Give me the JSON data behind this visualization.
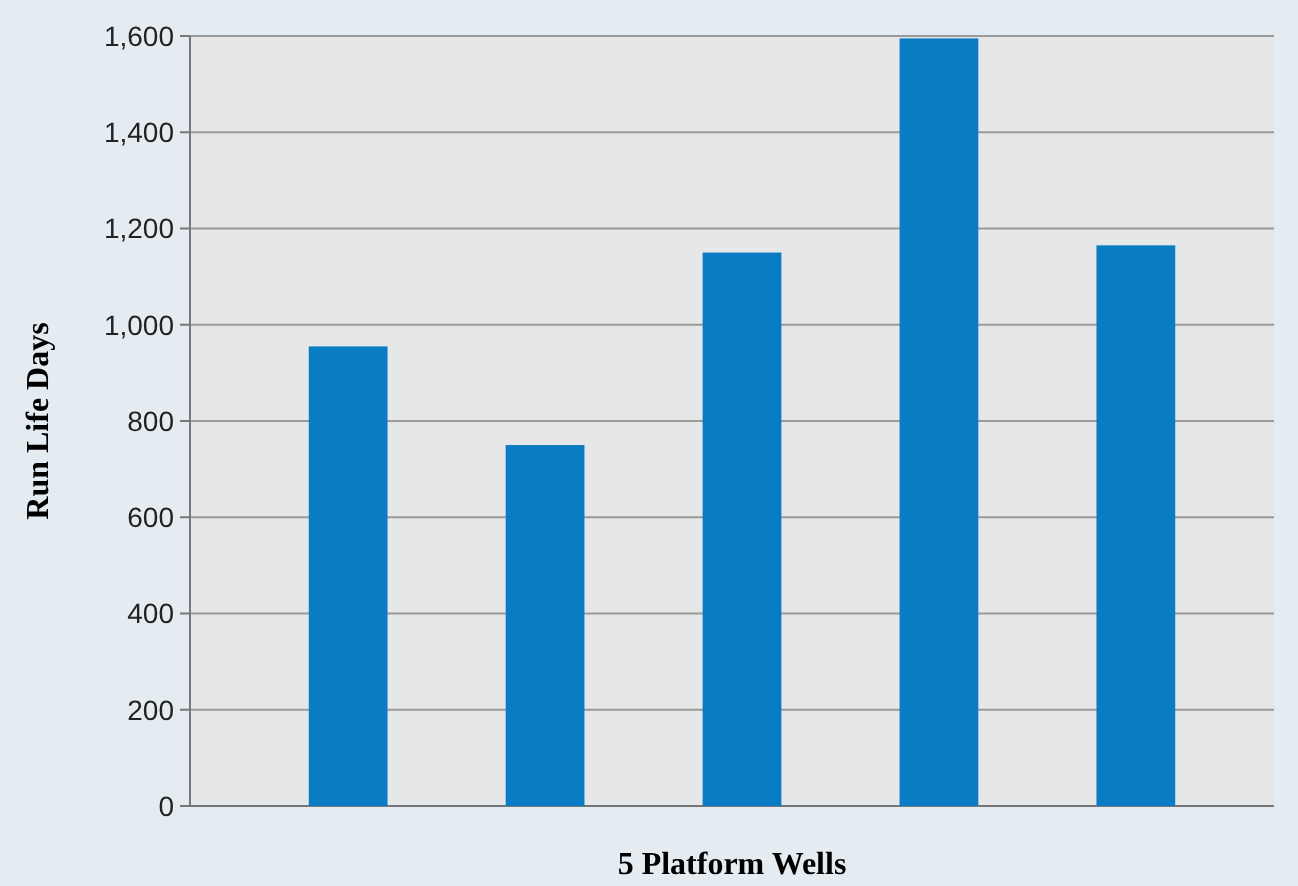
{
  "chart_data": {
    "type": "bar",
    "xlabel": "5 Platform Wells",
    "ylabel": "Run Life Days",
    "categories": [
      null,
      null,
      null,
      null,
      null
    ],
    "values": [
      955,
      750,
      1150,
      1595,
      1165
    ],
    "color": "#0a7cc4",
    "ylim": [
      0,
      1600
    ],
    "yticks": [
      {
        "value": 0,
        "label": "0"
      },
      {
        "value": 200,
        "label": "200"
      },
      {
        "value": 400,
        "label": "400"
      },
      {
        "value": 600,
        "label": "600"
      },
      {
        "value": 800,
        "label": "800"
      },
      {
        "value": 1000,
        "label": "1,000"
      },
      {
        "value": 1200,
        "label": "1,200"
      },
      {
        "value": 1400,
        "label": "1,400"
      },
      {
        "value": 1600,
        "label": "1,600"
      }
    ],
    "grid": "y"
  }
}
